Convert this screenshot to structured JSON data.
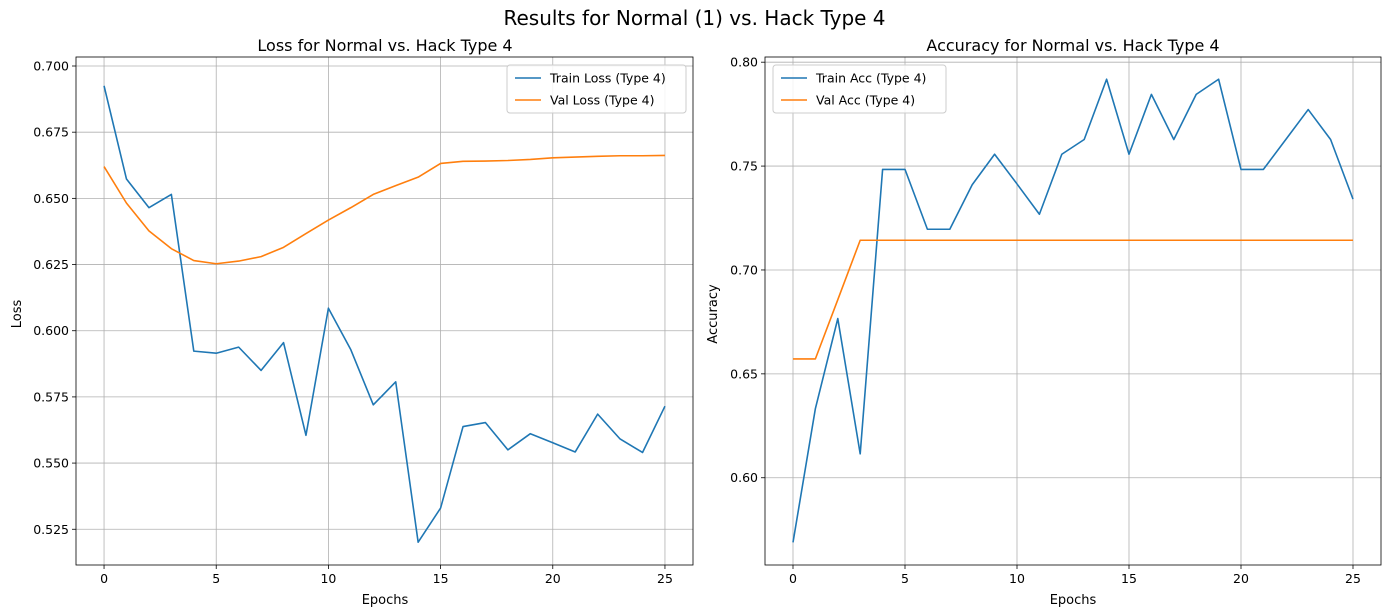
{
  "figure": {
    "suptitle": "Results for Normal (1) vs. Hack Type 4"
  },
  "chart_data": [
    {
      "type": "line",
      "title": "Loss for Normal vs. Hack Type 4",
      "xlabel": "Epochs",
      "ylabel": "Loss",
      "xlim": [
        -1.25,
        26.25
      ],
      "ylim": [
        0.5115,
        0.7034
      ],
      "x_ticks": [
        0,
        5,
        10,
        15,
        20,
        25
      ],
      "y_ticks": [
        0.525,
        0.55,
        0.575,
        0.6,
        0.625,
        0.65,
        0.675,
        0.7
      ],
      "x_tick_labels": [
        "0",
        "5",
        "10",
        "15",
        "20",
        "25"
      ],
      "y_tick_labels": [
        "0.525",
        "0.550",
        "0.575",
        "0.600",
        "0.625",
        "0.650",
        "0.675",
        "0.700"
      ],
      "grid": true,
      "legend_position": "top-right",
      "x": [
        0,
        1,
        2,
        3,
        4,
        5,
        6,
        7,
        8,
        9,
        10,
        11,
        12,
        13,
        14,
        15,
        16,
        17,
        18,
        19,
        20,
        21,
        22,
        23,
        24,
        25
      ],
      "series": [
        {
          "name": "Train Loss (Type 4)",
          "color": "#1f77b4",
          "values": [
            0.6925,
            0.6573,
            0.6465,
            0.6515,
            0.5923,
            0.5915,
            0.5938,
            0.585,
            0.5955,
            0.5605,
            0.6085,
            0.5928,
            0.572,
            0.5807,
            0.5201,
            0.533,
            0.5638,
            0.5653,
            0.555,
            0.5611,
            0.5577,
            0.5542,
            0.5685,
            0.5591,
            0.554,
            0.5715
          ]
        },
        {
          "name": "Val Loss (Type 4)",
          "color": "#ff7f0e",
          "values": [
            0.662,
            0.6482,
            0.6377,
            0.631,
            0.6265,
            0.6253,
            0.6263,
            0.628,
            0.6315,
            0.6367,
            0.6418,
            0.6465,
            0.6515,
            0.6548,
            0.658,
            0.6632,
            0.664,
            0.6641,
            0.6643,
            0.6647,
            0.6653,
            0.6656,
            0.6659,
            0.6661,
            0.6661,
            0.6662
          ]
        }
      ]
    },
    {
      "type": "line",
      "title": "Accuracy for Normal vs. Hack Type 4",
      "xlabel": "Epochs",
      "ylabel": "Accuracy",
      "xlim": [
        -1.25,
        26.25
      ],
      "ylim": [
        0.558,
        0.8025
      ],
      "x_ticks": [
        0,
        5,
        10,
        15,
        20,
        25
      ],
      "y_ticks": [
        0.6,
        0.65,
        0.7,
        0.75,
        0.8
      ],
      "x_tick_labels": [
        "0",
        "5",
        "10",
        "15",
        "20",
        "25"
      ],
      "y_tick_labels": [
        "0.60",
        "0.65",
        "0.70",
        "0.75",
        "0.80"
      ],
      "grid": true,
      "legend_position": "top-left",
      "x": [
        0,
        1,
        2,
        3,
        4,
        5,
        6,
        7,
        8,
        9,
        10,
        11,
        12,
        13,
        14,
        15,
        16,
        17,
        18,
        19,
        20,
        21,
        22,
        23,
        24,
        25
      ],
      "series": [
        {
          "name": "Train Acc (Type 4)",
          "color": "#1f77b4",
          "values": [
            0.5689,
            0.6333,
            0.6766,
            0.6115,
            0.7484,
            0.7484,
            0.7196,
            0.7196,
            0.741,
            0.7557,
            0.7414,
            0.7268,
            0.7557,
            0.7628,
            0.7918,
            0.7557,
            0.7845,
            0.7628,
            0.7845,
            0.7918,
            0.7484,
            0.7484,
            0.7628,
            0.7772,
            0.7628,
            0.7341
          ]
        },
        {
          "name": "Val Acc (Type 4)",
          "color": "#ff7f0e",
          "values": [
            0.6572,
            0.6572,
            0.6857,
            0.7143,
            0.7143,
            0.7143,
            0.7143,
            0.7143,
            0.7143,
            0.7143,
            0.7143,
            0.7143,
            0.7143,
            0.7143,
            0.7143,
            0.7143,
            0.7143,
            0.7143,
            0.7143,
            0.7143,
            0.7143,
            0.7143,
            0.7143,
            0.7143,
            0.7143,
            0.7143
          ]
        }
      ]
    }
  ]
}
